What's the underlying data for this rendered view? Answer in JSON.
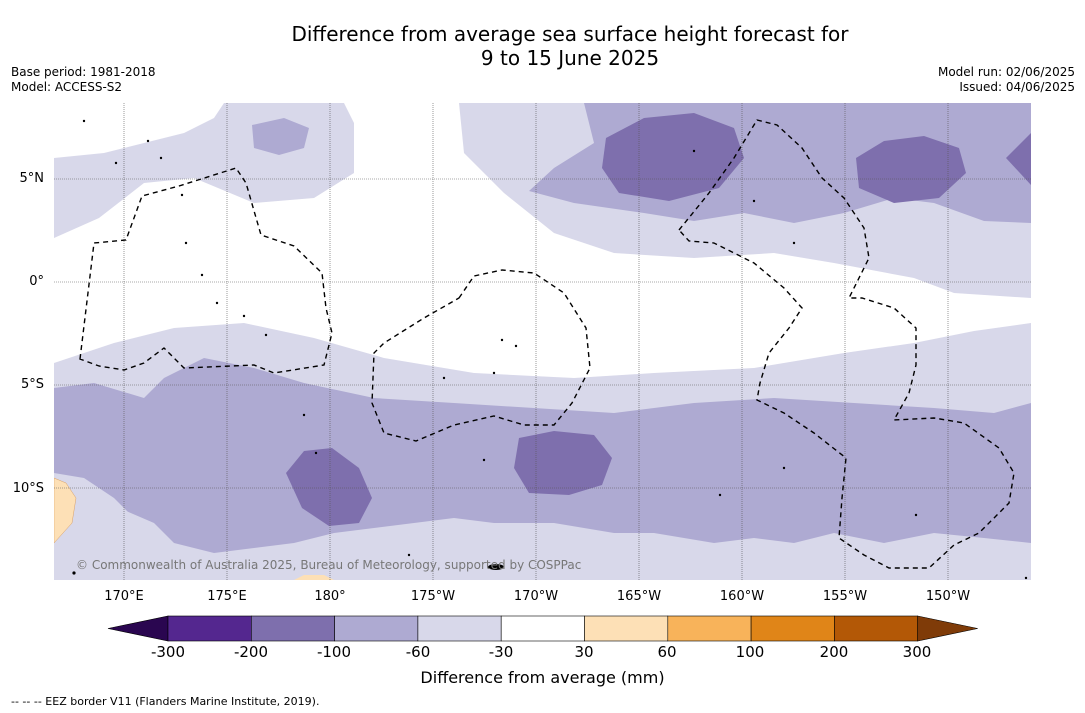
{
  "title_line1": "Difference from average sea surface height forecast for",
  "title_line2": "9 to 15 June 2025",
  "meta_left": {
    "base_period": "Base period: 1981-2018",
    "model": "Model: ACCESS-S2"
  },
  "meta_right": {
    "model_run": "Model run: 02/06/2025",
    "issued": "Issued: 04/06/2025"
  },
  "copyright": "© Commonwealth of Australia 2025, Bureau of Meteorology, supported by COSPPac",
  "lat_labels": [
    "5°N",
    "0°",
    "5°S",
    "10°S"
  ],
  "lon_labels": [
    "170°E",
    "175°E",
    "180°",
    "175°W",
    "170°W",
    "165°W",
    "160°W",
    "155°W",
    "150°W"
  ],
  "colorbar": {
    "ticks": [
      "-300",
      "-200",
      "-100",
      "-60",
      "-30",
      "30",
      "60",
      "100",
      "200",
      "300"
    ],
    "colors": [
      "#2a0650",
      "#54278f",
      "#7e6fad",
      "#aeaad2",
      "#d8d8ea",
      "#ffffff",
      "#fde0b6",
      "#f8b35a",
      "#e08518",
      "#b35806",
      "#7f3b08"
    ],
    "label": "Difference from average (mm)"
  },
  "footnote": "--  --  -- EEZ border V11 (Flanders Marine Institute, 2019)."
}
